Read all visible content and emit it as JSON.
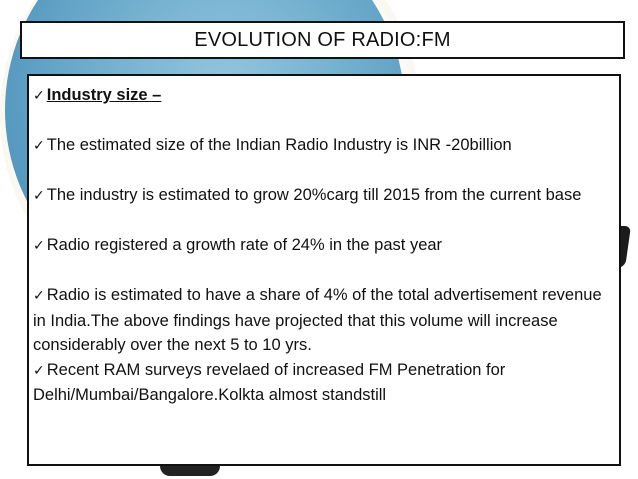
{
  "slide": {
    "title": "EVOLUTION OF RADIO:FM",
    "bullet_icon": "✓",
    "heading": "Industry size –",
    "bullets": [
      "The estimated  size of the Indian Radio Industry is  INR -20billion",
      "The industry is estimated to grow 20%carg till 2015 from the current base",
      "Radio  registered a growth rate of 24% in the past year",
      "Radio is estimated to have a share of 4% of the total advertisement revenue in India.The  above findings have projected that this volume will increase considerably over the next 5 to 10 yrs.",
      "Recent   RAM surveys revelaed of increased FM Penetration for Delhi/Mumbai/Bangalore.Kolkta almost standstill"
    ]
  },
  "colors": {
    "globe": "#5a9fc6",
    "border": "#111111",
    "background": "#ffffff"
  }
}
